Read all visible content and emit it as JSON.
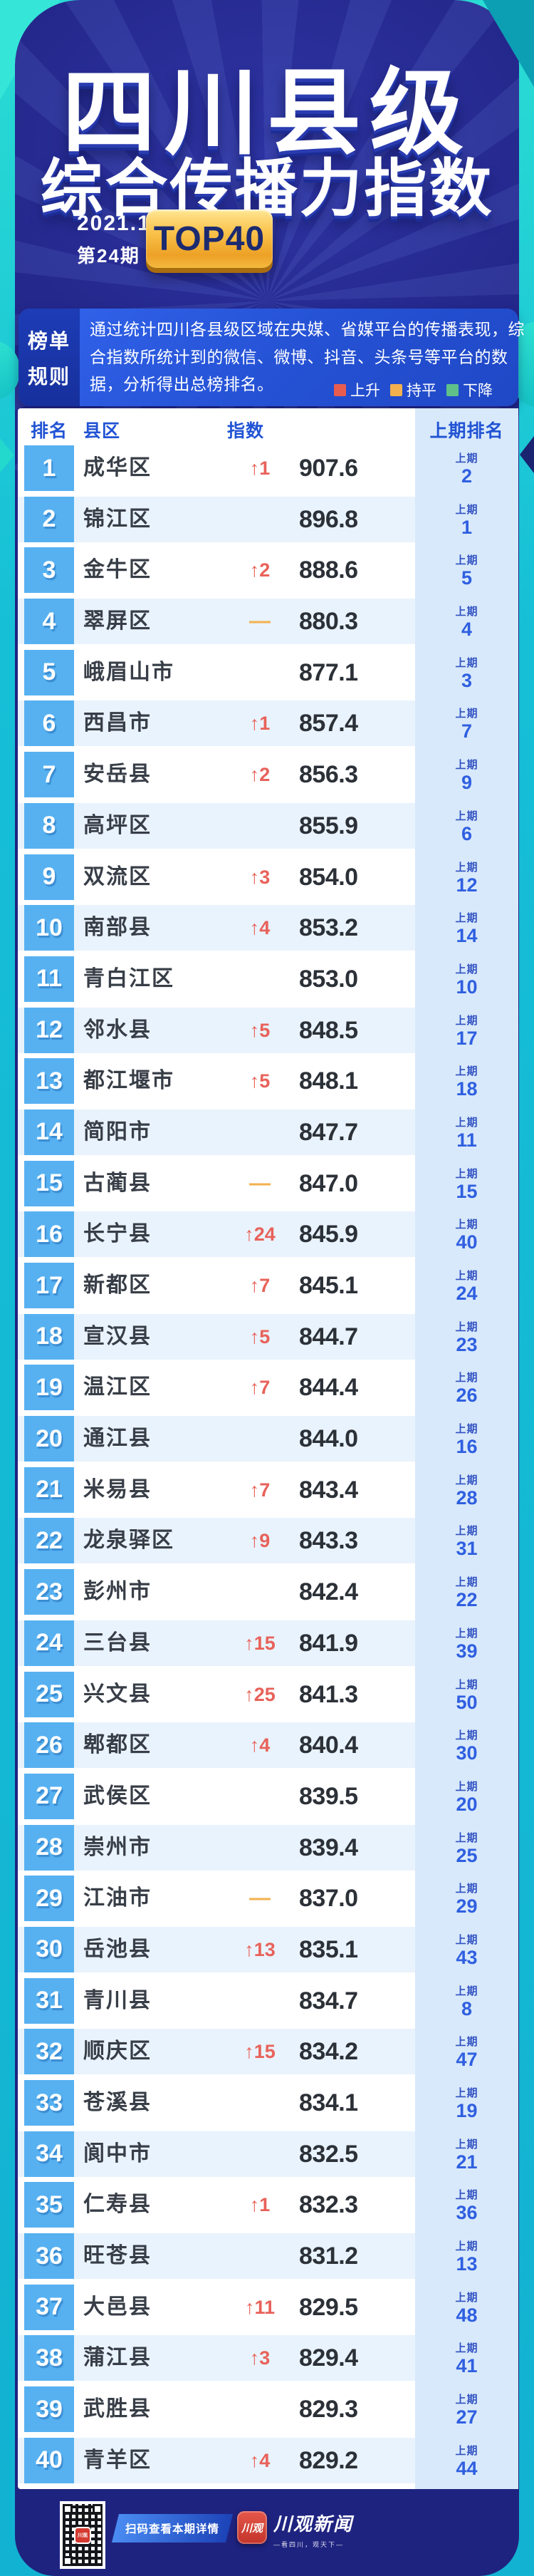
{
  "header": {
    "title_line1": "四川县级",
    "title_line2": "综合传播力指数",
    "date": "2021.11",
    "issue": "第24期",
    "badge": "TOP40"
  },
  "rules": {
    "label_line1": "榜单",
    "label_line2": "规则",
    "text": "通过统计四川各县级区域在央媒、省媒平台的传播表现，综合指数所统计到的微信、微博、抖音、头条号等平台的数据，分析得出总榜排名。",
    "legend": [
      {
        "label": "上升",
        "color": "#e85c50"
      },
      {
        "label": "持平",
        "color": "#f2b14e"
      },
      {
        "label": "下降",
        "color": "#5fc08a"
      }
    ]
  },
  "table": {
    "headers": [
      "排名",
      "县区",
      "指数",
      "上期排名"
    ],
    "prev_label": "上期",
    "rows": [
      {
        "rank": "1",
        "name": "成华区",
        "change": "↑1",
        "change_type": "up",
        "index": "907.6",
        "prev": "2"
      },
      {
        "rank": "2",
        "name": "锦江区",
        "change": "",
        "change_type": "none",
        "index": "896.8",
        "prev": "1"
      },
      {
        "rank": "3",
        "name": "金牛区",
        "change": "↑2",
        "change_type": "up",
        "index": "888.6",
        "prev": "5"
      },
      {
        "rank": "4",
        "name": "翠屏区",
        "change": "—",
        "change_type": "flat",
        "index": "880.3",
        "prev": "4"
      },
      {
        "rank": "5",
        "name": "峨眉山市",
        "change": "",
        "change_type": "none",
        "index": "877.1",
        "prev": "3"
      },
      {
        "rank": "6",
        "name": "西昌市",
        "change": "↑1",
        "change_type": "up",
        "index": "857.4",
        "prev": "7"
      },
      {
        "rank": "7",
        "name": "安岳县",
        "change": "↑2",
        "change_type": "up",
        "index": "856.3",
        "prev": "9"
      },
      {
        "rank": "8",
        "name": "高坪区",
        "change": "",
        "change_type": "none",
        "index": "855.9",
        "prev": "6"
      },
      {
        "rank": "9",
        "name": "双流区",
        "change": "↑3",
        "change_type": "up",
        "index": "854.0",
        "prev": "12"
      },
      {
        "rank": "10",
        "name": "南部县",
        "change": "↑4",
        "change_type": "up",
        "index": "853.2",
        "prev": "14"
      },
      {
        "rank": "11",
        "name": "青白江区",
        "change": "",
        "change_type": "none",
        "index": "853.0",
        "prev": "10"
      },
      {
        "rank": "12",
        "name": "邻水县",
        "change": "↑5",
        "change_type": "up",
        "index": "848.5",
        "prev": "17"
      },
      {
        "rank": "13",
        "name": "都江堰市",
        "change": "↑5",
        "change_type": "up",
        "index": "848.1",
        "prev": "18"
      },
      {
        "rank": "14",
        "name": "简阳市",
        "change": "",
        "change_type": "none",
        "index": "847.7",
        "prev": "11"
      },
      {
        "rank": "15",
        "name": "古蔺县",
        "change": "—",
        "change_type": "flat",
        "index": "847.0",
        "prev": "15"
      },
      {
        "rank": "16",
        "name": "长宁县",
        "change": "↑24",
        "change_type": "up",
        "index": "845.9",
        "prev": "40"
      },
      {
        "rank": "17",
        "name": "新都区",
        "change": "↑7",
        "change_type": "up",
        "index": "845.1",
        "prev": "24"
      },
      {
        "rank": "18",
        "name": "宣汉县",
        "change": "↑5",
        "change_type": "up",
        "index": "844.7",
        "prev": "23"
      },
      {
        "rank": "19",
        "name": "温江区",
        "change": "↑7",
        "change_type": "up",
        "index": "844.4",
        "prev": "26"
      },
      {
        "rank": "20",
        "name": "通江县",
        "change": "",
        "change_type": "none",
        "index": "844.0",
        "prev": "16"
      },
      {
        "rank": "21",
        "name": "米易县",
        "change": "↑7",
        "change_type": "up",
        "index": "843.4",
        "prev": "28"
      },
      {
        "rank": "22",
        "name": "龙泉驿区",
        "change": "↑9",
        "change_type": "up",
        "index": "843.3",
        "prev": "31"
      },
      {
        "rank": "23",
        "name": "彭州市",
        "change": "",
        "change_type": "none",
        "index": "842.4",
        "prev": "22"
      },
      {
        "rank": "24",
        "name": "三台县",
        "change": "↑15",
        "change_type": "up",
        "index": "841.9",
        "prev": "39"
      },
      {
        "rank": "25",
        "name": "兴文县",
        "change": "↑25",
        "change_type": "up",
        "index": "841.3",
        "prev": "50"
      },
      {
        "rank": "26",
        "name": "郫都区",
        "change": "↑4",
        "change_type": "up",
        "index": "840.4",
        "prev": "30"
      },
      {
        "rank": "27",
        "name": "武侯区",
        "change": "",
        "change_type": "none",
        "index": "839.5",
        "prev": "20"
      },
      {
        "rank": "28",
        "name": "崇州市",
        "change": "",
        "change_type": "none",
        "index": "839.4",
        "prev": "25"
      },
      {
        "rank": "29",
        "name": "江油市",
        "change": "—",
        "change_type": "flat",
        "index": "837.0",
        "prev": "29"
      },
      {
        "rank": "30",
        "name": "岳池县",
        "change": "↑13",
        "change_type": "up",
        "index": "835.1",
        "prev": "43"
      },
      {
        "rank": "31",
        "name": "青川县",
        "change": "",
        "change_type": "none",
        "index": "834.7",
        "prev": "8"
      },
      {
        "rank": "32",
        "name": "顺庆区",
        "change": "↑15",
        "change_type": "up",
        "index": "834.2",
        "prev": "47"
      },
      {
        "rank": "33",
        "name": "苍溪县",
        "change": "",
        "change_type": "none",
        "index": "834.1",
        "prev": "19"
      },
      {
        "rank": "34",
        "name": "阆中市",
        "change": "",
        "change_type": "none",
        "index": "832.5",
        "prev": "21"
      },
      {
        "rank": "35",
        "name": "仁寿县",
        "change": "↑1",
        "change_type": "up",
        "index": "832.3",
        "prev": "36"
      },
      {
        "rank": "36",
        "name": "旺苍县",
        "change": "",
        "change_type": "none",
        "index": "831.2",
        "prev": "13"
      },
      {
        "rank": "37",
        "name": "大邑县",
        "change": "↑11",
        "change_type": "up",
        "index": "829.5",
        "prev": "48"
      },
      {
        "rank": "38",
        "name": "蒲江县",
        "change": "↑3",
        "change_type": "up",
        "index": "829.4",
        "prev": "41"
      },
      {
        "rank": "39",
        "name": "武胜县",
        "change": "",
        "change_type": "none",
        "index": "829.3",
        "prev": "27"
      },
      {
        "rank": "40",
        "name": "青羊区",
        "change": "↑4",
        "change_type": "up",
        "index": "829.2",
        "prev": "44"
      }
    ]
  },
  "footer": {
    "qr_center_label": "川观",
    "banner": "扫码查看本期详情",
    "app_icon_label": "川观",
    "logo_name": "川观新闻",
    "logo_tagline": "—看四川，观天下—"
  },
  "colors": {
    "page_teal": "#16bed6",
    "panel_navy": "#24288c",
    "rules_blue": "#2450d2",
    "rank_cell_blue": "#57b1f1",
    "row_alt_tint": "#e9f3fd",
    "prev_column_bg": "#d8e9fb",
    "header_text_blue": "#2153d4",
    "up_red": "#e8625a",
    "flat_orange": "#f2b14e",
    "badge_gold": "#f9c24a"
  }
}
